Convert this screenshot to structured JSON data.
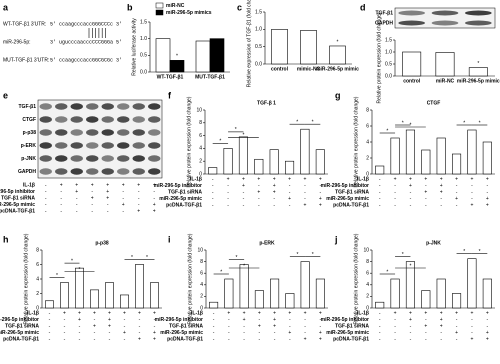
{
  "panel_a": {
    "label": "a",
    "rows": [
      {
        "name": "WT-TGF-β1 3'UTR:",
        "sequence": "5' ccaagcccaccGGGCCCc 3'"
      },
      {
        "name": "miR-296-5p:",
        "sequence": "3' ugucccaacccCCCGGGa 5'"
      },
      {
        "name": "MUT-TGF-β1 3'UTR:",
        "sequence": "5' ccaagcccaccGGCGCGc 3'"
      }
    ]
  },
  "panel_e": {
    "label": "e",
    "blot_labels": [
      "TGF-β1",
      "CTGF",
      "p-p38",
      "p-ERK",
      "p-JNK",
      "GAPDH"
    ]
  },
  "treatments": [
    {
      "name": "IL-1β",
      "signs": [
        "-",
        "+",
        "+",
        "+",
        "+",
        "+",
        "+",
        "+"
      ]
    },
    {
      "name": "miR-296-5p inhibitor",
      "signs": [
        "-",
        "-",
        "+",
        "-",
        "+",
        "-",
        "-",
        "-"
      ]
    },
    {
      "name": "TGF-β1 siRNA",
      "signs": [
        "-",
        "-",
        "-",
        "+",
        "+",
        "-",
        "-",
        "-"
      ]
    },
    {
      "name": "miR-296-5p mimic",
      "signs": [
        "-",
        "-",
        "-",
        "-",
        "-",
        "+",
        "-",
        "+"
      ]
    },
    {
      "name": "pcDNA-TGF-β1",
      "signs": [
        "-",
        "-",
        "-",
        "-",
        "-",
        "-",
        "+",
        "+"
      ]
    }
  ],
  "chart_data": [
    {
      "label": "b",
      "type": "bar",
      "ylabel": "Relative luciferase activity",
      "categories": [
        "WT-TGF-β1",
        "MUT-TGF-β1"
      ],
      "series": [
        {
          "name": "miR-NC",
          "color": "#ffffff",
          "values": [
            1.0,
            0.93
          ]
        },
        {
          "name": "miR-296-5p mimics",
          "color": "#000000",
          "values": [
            0.35,
            1.0
          ]
        }
      ],
      "ylim": [
        0,
        1.5
      ],
      "yticks": [
        {
          "value": 0,
          "label": "0.0"
        },
        0.5,
        {
          "value": 1,
          "label": "1.0"
        },
        1.5
      ],
      "significance": "*"
    },
    {
      "label": "c",
      "type": "bar",
      "ylabel": "Relative expression of TGF-β1 (fold change)",
      "categories": [
        "control",
        "mimic-NC",
        "miR-296-5p mimic"
      ],
      "values": [
        1.0,
        0.97,
        0.52
      ],
      "color": "#ffffff",
      "ylim": [
        0,
        1.5
      ],
      "yticks": [
        {
          "value": 0,
          "label": "0.0"
        },
        0.5,
        {
          "value": 1,
          "label": "1.0"
        },
        1.5
      ],
      "significance": "*"
    },
    {
      "label": "d",
      "type": "bar",
      "blot_labels": [
        "TGF-β1",
        "GAPDH"
      ],
      "ylabel": "Relative protein expression (fold change)",
      "categories": [
        "control",
        "miR-NC",
        "miR-296-5p mimic"
      ],
      "values": [
        1.0,
        0.98,
        0.35
      ],
      "color": "#ffffff",
      "ylim": [
        0,
        1.5
      ],
      "yticks": [
        {
          "value": 0,
          "label": "0.0"
        },
        0.5,
        {
          "value": 1,
          "label": "1.0"
        },
        1.5
      ],
      "significance": "*"
    },
    {
      "label": "f",
      "type": "bar",
      "title": "TGF-β 1",
      "ylabel": "Relative protein expression (fold change)",
      "categories": [
        null,
        null,
        null,
        null,
        null,
        null,
        null,
        null
      ],
      "values": [
        1,
        4,
        5.8,
        2.3,
        3.8,
        2,
        7,
        3.8
      ],
      "color": "#ffffff",
      "ylim": [
        0,
        10
      ],
      "yticks": [
        0,
        2,
        4,
        6,
        8,
        10
      ],
      "significance": "*",
      "treatment_table": true
    },
    {
      "label": "g",
      "type": "bar",
      "title": "CTGF",
      "ylabel": "Relative protein expression (fold change)",
      "categories": [
        null,
        null,
        null,
        null,
        null,
        null,
        null,
        null
      ],
      "values": [
        1,
        4.5,
        5.5,
        3,
        4.5,
        2.5,
        5.5,
        4
      ],
      "color": "#ffffff",
      "ylim": [
        0,
        8
      ],
      "yticks": [
        0,
        2,
        4,
        6,
        8
      ],
      "significance": "*",
      "treatment_table": true
    },
    {
      "label": "h",
      "type": "bar",
      "title": "p-p38",
      "ylabel": "Relative protein expression (fold change)",
      "categories": [
        null,
        null,
        null,
        null,
        null,
        null,
        null,
        null
      ],
      "values": [
        1,
        3.5,
        5.5,
        2.5,
        3.5,
        1.8,
        6,
        3.5
      ],
      "color": "#ffffff",
      "ylim": [
        0,
        8
      ],
      "yticks": [
        0,
        2,
        4,
        6,
        8
      ],
      "significance": "*",
      "treatment_table": true
    },
    {
      "label": "i",
      "type": "bar",
      "title": "p-ERK",
      "ylabel": "Relative protein expression (fold change)",
      "categories": [
        null,
        null,
        null,
        null,
        null,
        null,
        null,
        null
      ],
      "values": [
        1,
        5,
        7.5,
        3,
        5,
        2.5,
        8,
        5
      ],
      "color": "#ffffff",
      "ylim": [
        0,
        10
      ],
      "yticks": [
        0,
        2,
        4,
        6,
        8,
        10
      ],
      "significance": "*",
      "treatment_table": true
    },
    {
      "label": "j",
      "type": "bar",
      "title": "p-JNK",
      "ylabel": "Relative protein expression (fold change)",
      "categories": [
        null,
        null,
        null,
        null,
        null,
        null,
        null,
        null
      ],
      "values": [
        1,
        5,
        8,
        3,
        5,
        2.5,
        8.5,
        5
      ],
      "color": "#ffffff",
      "ylim": [
        0,
        10
      ],
      "yticks": [
        0,
        2,
        4,
        6,
        8,
        10
      ],
      "significance": "*",
      "treatment_table": true
    }
  ]
}
